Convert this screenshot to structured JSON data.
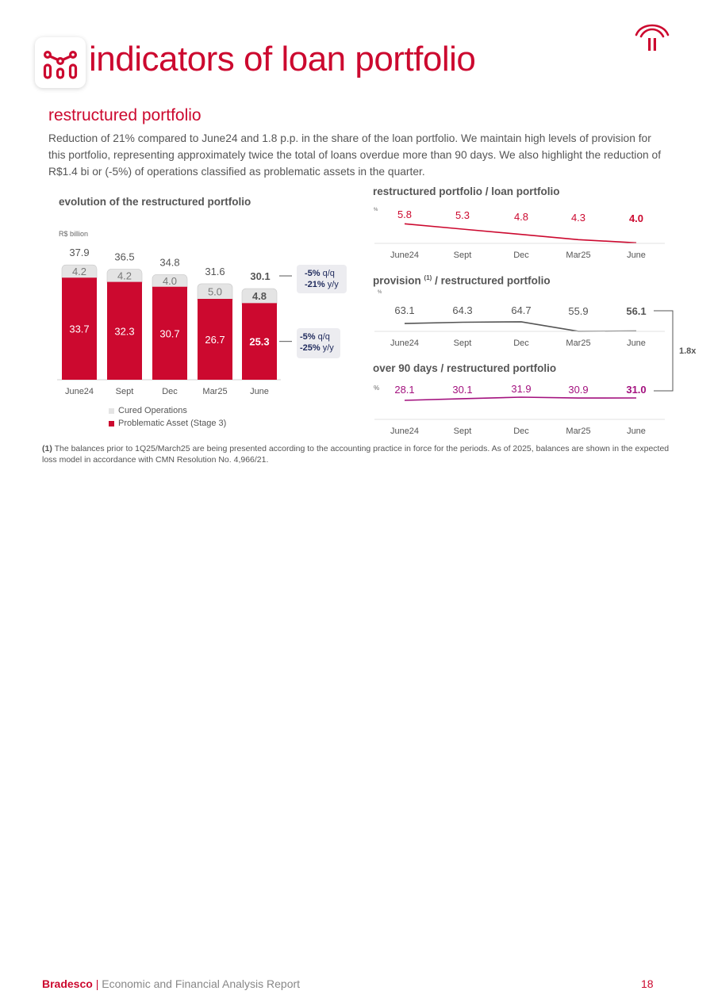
{
  "page": {
    "title": "indicators of loan portfolio",
    "section_title": "restructured portfolio",
    "intro": "Reduction of 21% compared to June24 and 1.8 p.p. in the share of the loan portfolio. We maintain high levels of provision for this portfolio, representing approximately twice the total of loans overdue more than 90 days. We also highlight the reduction of R$1.4 bi or (-5%) of operations classified as problematic assets in the quarter.",
    "footnote_marker": "(1)",
    "footnote_text": "The balances prior to 1Q25/March25 are being presented according to the accounting practice in force for the periods. As of 2025, balances are shown in the expected loss model in accordance with CMN Resolution No. 4,966/21.",
    "footer_brand": "Bradesco",
    "footer_sep": "|",
    "footer_report": "Economic and Financial Analysis Report",
    "page_number": "18"
  },
  "colors": {
    "brand_red": "#cc092f",
    "cured_gray": "#e4e4e4",
    "dark_gray": "#555555",
    "magenta": "#a3117e",
    "badge_bg": "#ececf0",
    "badge_text": "#1f2a5c"
  },
  "icons": {
    "header": "chart-nodes-icon",
    "logo": "bradesco-logo-icon"
  },
  "bar_badges": {
    "total": {
      "q_value": "-5%",
      "q_unit": "q/q",
      "y_value": "-21%",
      "y_unit": "y/y"
    },
    "problematic": {
      "q_value": "-5%",
      "q_unit": "q/q",
      "y_value": "-25%",
      "y_unit": "y/y"
    }
  },
  "ratio_multiplier": "1.8x",
  "chart_data": [
    {
      "type": "bar",
      "stacked": true,
      "title": "evolution of the restructured portfolio",
      "unit": "R$ billion",
      "categories": [
        "June24",
        "Sept",
        "Dec",
        "Mar25",
        "June"
      ],
      "series": [
        {
          "name": "Problematic Asset (Stage 3)",
          "values": [
            33.7,
            32.3,
            30.7,
            26.7,
            25.3
          ]
        },
        {
          "name": "Cured Operations",
          "values": [
            4.2,
            4.2,
            4.0,
            5.0,
            4.8
          ]
        }
      ],
      "totals": [
        37.9,
        36.5,
        34.8,
        31.6,
        30.1
      ],
      "legend": [
        "Cured Operations",
        "Problematic Asset (Stage 3)"
      ]
    },
    {
      "type": "line",
      "title": "restructured portfolio / loan portfolio",
      "unit": "%",
      "categories": [
        "June24",
        "Sept",
        "Dec",
        "Mar25",
        "June"
      ],
      "values": [
        5.8,
        5.3,
        4.8,
        4.3,
        4.0
      ]
    },
    {
      "type": "line",
      "title_main": "provision",
      "title_note": "(1)",
      "title_rest": "/ restructured portfolio",
      "unit": "%",
      "categories": [
        "June24",
        "Sept",
        "Dec",
        "Mar25",
        "June"
      ],
      "values": [
        63.1,
        64.3,
        64.7,
        55.9,
        56.1
      ]
    },
    {
      "type": "line",
      "title": "over 90 days / restructured portfolio",
      "unit": "%",
      "categories": [
        "June24",
        "Sept",
        "Dec",
        "Mar25",
        "June"
      ],
      "values": [
        28.1,
        30.1,
        31.9,
        30.9,
        31.0
      ]
    }
  ]
}
